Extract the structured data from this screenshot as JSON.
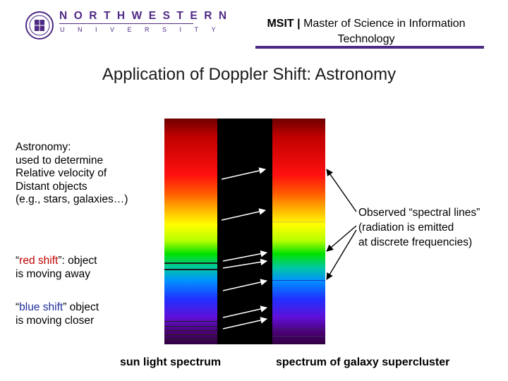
{
  "header": {
    "logo_name": "NORTHWESTERN",
    "logo_sub": "UNIVERSITY",
    "program_abbr": "MSIT",
    "separator": "|",
    "program_name": "Master of Science in Information Technology"
  },
  "title": "Application of Doppler Shift: Astronomy",
  "left_text": {
    "intro_lines": [
      "Astronomy:",
      "used to determine",
      "Relative velocity of",
      "Distant objects",
      "(e.g., stars, galaxies…)"
    ],
    "red_shift": {
      "open_quote": "“",
      "term": "red shift",
      "rest_line1": "”: object",
      "line2": "is moving away"
    },
    "blue_shift": {
      "open_quote": "“",
      "term": "blue shift",
      "rest_line1": "” object",
      "line2": "is moving closer"
    }
  },
  "callout_lines": [
    "Observed “spectral lines”",
    "(radiation is emitted",
    "at discrete frequencies)"
  ],
  "captions": {
    "sun": "sun light spectrum",
    "galaxy": "spectrum of galaxy supercluster"
  },
  "colors": {
    "northwestern_purple": "#4e2a84",
    "red_shift_text": "#c00000",
    "blue_shift_text": "#1f2f9a"
  }
}
